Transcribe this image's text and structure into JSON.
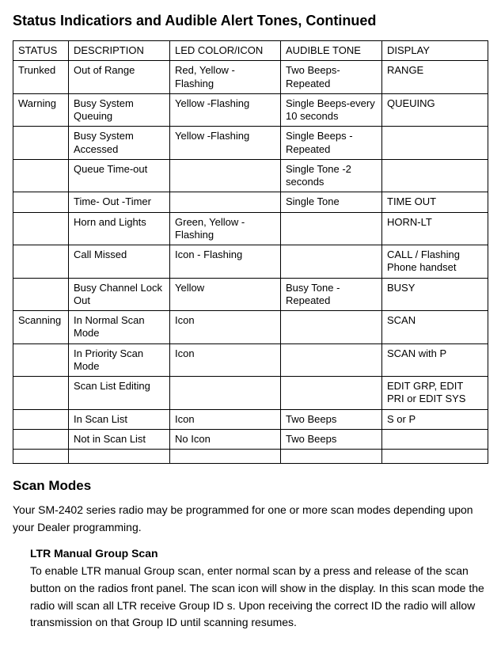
{
  "title": "Status Indicatiors and Audible Alert Tones, Continued",
  "table": {
    "headers": [
      "STATUS",
      "DESCRIPTION",
      "LED COLOR/ICON",
      "AUDIBLE TONE",
      "DISPLAY"
    ],
    "rows": [
      [
        "Trunked",
        "Out of Range",
        "Red, Yellow - Flashing",
        "Two Beeps-Repeated",
        "RANGE"
      ],
      [
        "Warning",
        "Busy System Queuing",
        "Yellow -Flashing",
        "Single Beeps-every 10 seconds",
        "QUEUING"
      ],
      [
        "",
        "Busy System Accessed",
        "Yellow -Flashing",
        "Single Beeps -Repeated",
        ""
      ],
      [
        "",
        "Queue Time-out",
        "",
        "Single Tone -2 seconds",
        ""
      ],
      [
        "",
        "Time- Out -Timer",
        "",
        "Single Tone",
        "TIME OUT"
      ],
      [
        "",
        "Horn and Lights",
        "Green, Yellow - Flashing",
        "",
        "HORN-LT"
      ],
      [
        "",
        "Call Missed",
        "Icon - Flashing",
        "",
        "CALL / Flashing Phone handset"
      ],
      [
        "",
        "Busy Channel Lock Out",
        "Yellow",
        "Busy Tone - Repeated",
        "BUSY"
      ],
      [
        "Scanning",
        "In Normal Scan Mode",
        "Icon",
        "",
        "SCAN"
      ],
      [
        "",
        "In Priority Scan Mode",
        "Icon",
        "",
        "SCAN with P"
      ],
      [
        "",
        "Scan List Editing",
        "",
        "",
        "EDIT GRP, EDIT PRI or EDIT SYS"
      ],
      [
        "",
        "In Scan List",
        "Icon",
        "Two Beeps",
        "S or P"
      ],
      [
        "",
        "Not in Scan List",
        "No Icon",
        "Two Beeps",
        ""
      ]
    ]
  },
  "scan_modes": {
    "heading": "Scan Modes",
    "intro": "Your SM-2402 series radio may be programmed for one or more scan modes depending upon your Dealer programming.",
    "ltr": {
      "heading": "LTR Manual Group Scan",
      "body": "To enable LTR manual Group scan, enter normal scan by a press and release of the scan button on the radios front panel. The scan icon will show in the display. In this scan mode the radio will scan all LTR receive Group ID s. Upon receiving the correct ID the radio will allow transmission on that Group ID until scanning resumes."
    }
  }
}
